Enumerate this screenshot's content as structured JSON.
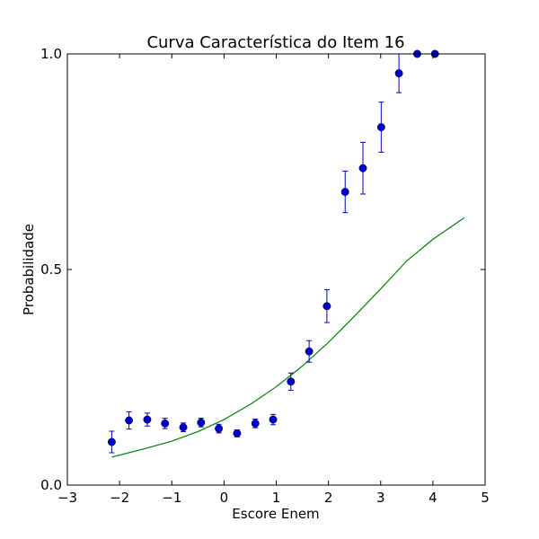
{
  "chart_data": {
    "type": "scatter",
    "title": "Curva Característica do Item 16",
    "xlabel": "Escore Enem",
    "ylabel": "Probabilidade",
    "xlim": [
      -3,
      5
    ],
    "ylim": [
      0,
      1
    ],
    "grid": false,
    "x_ticks": [
      "−3",
      "−2",
      "−1",
      "0",
      "1",
      "2",
      "3",
      "4",
      "5"
    ],
    "y_ticks": [
      "0.0",
      "0.5",
      "1.0"
    ],
    "x_tick_values": [
      -3,
      -2,
      -1,
      0,
      1,
      2,
      3,
      4,
      5
    ],
    "y_tick_values": [
      0,
      0.5,
      1.0
    ],
    "series": [
      {
        "kind": "scatter-errorbar",
        "color": "#0000cc",
        "points": [
          {
            "x": -2.15,
            "y": 0.1,
            "err": 0.025
          },
          {
            "x": -1.82,
            "y": 0.15,
            "err": 0.02
          },
          {
            "x": -1.47,
            "y": 0.152,
            "err": 0.015
          },
          {
            "x": -1.13,
            "y": 0.143,
            "err": 0.012
          },
          {
            "x": -0.78,
            "y": 0.134,
            "err": 0.01
          },
          {
            "x": -0.44,
            "y": 0.145,
            "err": 0.01
          },
          {
            "x": -0.1,
            "y": 0.131,
            "err": 0.01
          },
          {
            "x": 0.25,
            "y": 0.12,
            "err": 0.008
          },
          {
            "x": 0.6,
            "y": 0.143,
            "err": 0.01
          },
          {
            "x": 0.94,
            "y": 0.152,
            "err": 0.012
          },
          {
            "x": 1.28,
            "y": 0.24,
            "err": 0.02
          },
          {
            "x": 1.63,
            "y": 0.31,
            "err": 0.025
          },
          {
            "x": 1.97,
            "y": 0.415,
            "err": 0.038
          },
          {
            "x": 2.32,
            "y": 0.68,
            "err": 0.048
          },
          {
            "x": 2.66,
            "y": 0.735,
            "err": 0.06
          },
          {
            "x": 3.01,
            "y": 0.83,
            "err": 0.058
          },
          {
            "x": 3.35,
            "y": 0.955,
            "err": 0.045
          },
          {
            "x": 3.7,
            "y": 1.0,
            "err": 0.0
          },
          {
            "x": 4.04,
            "y": 1.0,
            "err": 0.0
          }
        ]
      },
      {
        "kind": "line",
        "color": "#008000",
        "x": [
          -2.15,
          -1.5,
          -1.0,
          -0.5,
          0.0,
          0.5,
          1.0,
          1.5,
          2.0,
          2.5,
          3.0,
          3.5,
          4.0,
          4.6
        ],
        "y": [
          0.065,
          0.085,
          0.102,
          0.124,
          0.152,
          0.187,
          0.228,
          0.276,
          0.331,
          0.392,
          0.455,
          0.52,
          0.57,
          0.62
        ]
      }
    ]
  }
}
